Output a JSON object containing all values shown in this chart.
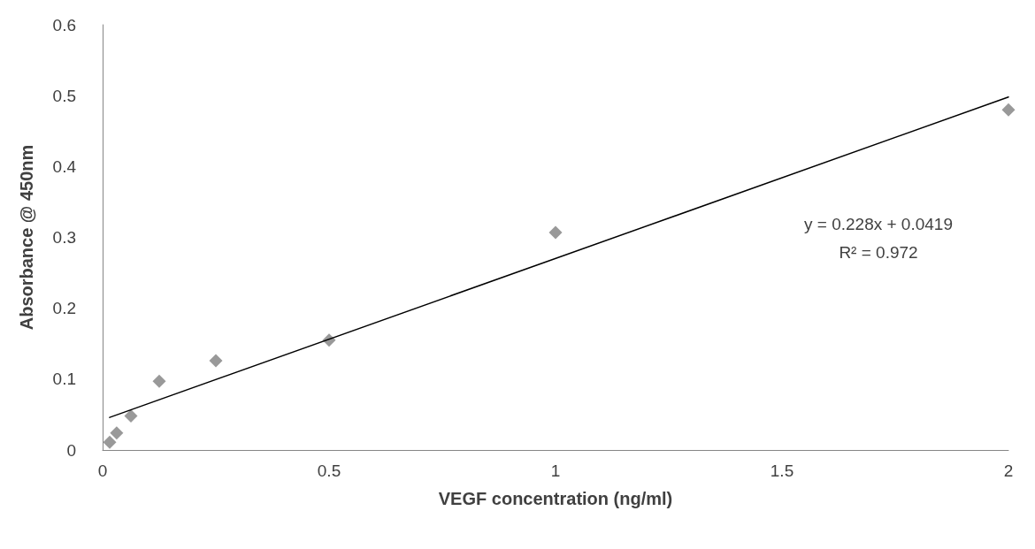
{
  "chart_data": {
    "type": "scatter",
    "xlabel": "VEGF concentration (ng/ml)",
    "ylabel": "Absorbance @ 450nm",
    "xlim": [
      0,
      2
    ],
    "xticks": [
      0,
      0.5,
      1,
      1.5,
      2
    ],
    "ylim": [
      0,
      0.6
    ],
    "yticks": [
      0,
      0.1,
      0.2,
      0.3,
      0.4,
      0.5,
      0.6
    ],
    "grid": false,
    "series": [
      {
        "color": "#7f7f7f",
        "marker": "diamond",
        "x": [
          0.0156,
          0.031,
          0.0625,
          0.125,
          0.25,
          0.5,
          1,
          2
        ],
        "values": [
          0.011,
          0.024,
          0.048,
          0.097,
          0.126,
          0.155,
          0.307,
          0.48
        ]
      },
      {
        "type": "line",
        "color": "#000000",
        "marker": "none",
        "line_style": "solid",
        "x": [
          0.0156,
          2
        ],
        "values": [
          0.046,
          0.498
        ]
      }
    ],
    "annotations": [
      "y = 0.228x + 0.0419",
      "R² = 0.972"
    ]
  }
}
